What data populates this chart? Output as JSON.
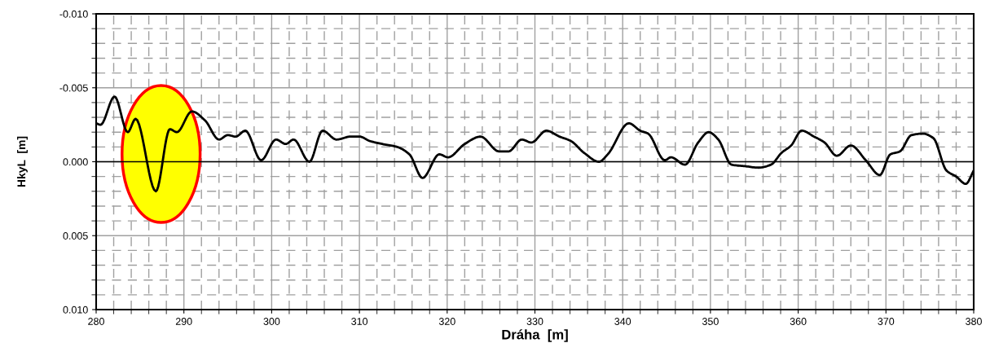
{
  "chart_data": {
    "type": "line",
    "xlabel": "Dráha  [m]",
    "ylabel": "HkyL  [m]",
    "x": [
      280,
      280.5,
      282.1,
      283.6,
      284.5,
      286.8,
      288.4,
      289.2,
      290.9,
      292.4,
      294.0,
      295.0,
      295.9,
      297.0,
      298.8,
      300.5,
      301.6,
      302.5,
      304.3,
      305.8,
      307.4,
      309.0,
      310.0,
      311.2,
      312.6,
      314.3,
      315.7,
      317.2,
      319.1,
      320.1,
      322.0,
      323.8,
      325.9,
      327.0,
      328.5,
      329.6,
      331.3,
      332.8,
      334.1,
      335.6,
      337.3,
      338.3,
      340.7,
      342.0,
      342.9,
      344.8,
      345.5,
      347.1,
      348.6,
      349.8,
      350.9,
      352.4,
      353.9,
      355.5,
      356.9,
      358.1,
      359.2,
      360.4,
      361.8,
      363.0,
      364.4,
      366.0,
      367.7,
      369.3,
      370.5,
      371.6,
      372.9,
      374.2,
      375.4,
      376.9,
      378.0,
      379.1,
      380
    ],
    "series": [
      {
        "color": "#000000",
        "values": [
          -0.0026,
          -0.0025,
          -0.0044,
          -0.002,
          -0.0029,
          0.002,
          -0.0022,
          -0.002,
          -0.0034,
          -0.0028,
          -0.0015,
          -0.0018,
          -0.0017,
          -0.0021,
          -0.0001,
          -0.0015,
          -0.0012,
          -0.0015,
          0.0,
          -0.0021,
          -0.0015,
          -0.0017,
          -0.0017,
          -0.0014,
          -0.0012,
          -0.001,
          -0.0005,
          0.0011,
          -0.0005,
          -0.0003,
          -0.0012,
          -0.0017,
          -0.0007,
          -0.0007,
          -0.0015,
          -0.0013,
          -0.0021,
          -0.0017,
          -0.0014,
          -0.0006,
          0.0,
          -0.0005,
          -0.0026,
          -0.0021,
          -0.0019,
          -0.0001,
          -0.0003,
          0.0002,
          -0.0013,
          -0.002,
          -0.0015,
          0.0002,
          0.0003,
          0.0004,
          0.0002,
          -0.0006,
          -0.0011,
          -0.0021,
          -0.0017,
          -0.0013,
          -0.0004,
          -0.0011,
          -0.0001,
          0.0009,
          -0.0005,
          -0.0007,
          -0.0018,
          -0.0019,
          -0.0016,
          0.0006,
          0.001,
          0.0015,
          0.0006
        ]
      }
    ],
    "xlim": [
      280,
      380
    ],
    "xticks": [
      280,
      290,
      300,
      310,
      320,
      330,
      340,
      350,
      360,
      370,
      380
    ],
    "ylim": [
      0.01,
      -0.01
    ],
    "yticks": [
      {
        "value": -0.01,
        "label": "-0.010"
      },
      {
        "value": -0.005,
        "label": "-0.005"
      },
      {
        "value": 0,
        "label": "0.000"
      },
      {
        "value": 0.005,
        "label": "0.005"
      },
      {
        "value": 0.01,
        "label": "0.010"
      }
    ],
    "ref_lines": [
      {
        "axis": "y",
        "value": 0,
        "label": null,
        "color": "#000000"
      }
    ],
    "grid": true,
    "marker": "none",
    "line_style": "solid"
  }
}
